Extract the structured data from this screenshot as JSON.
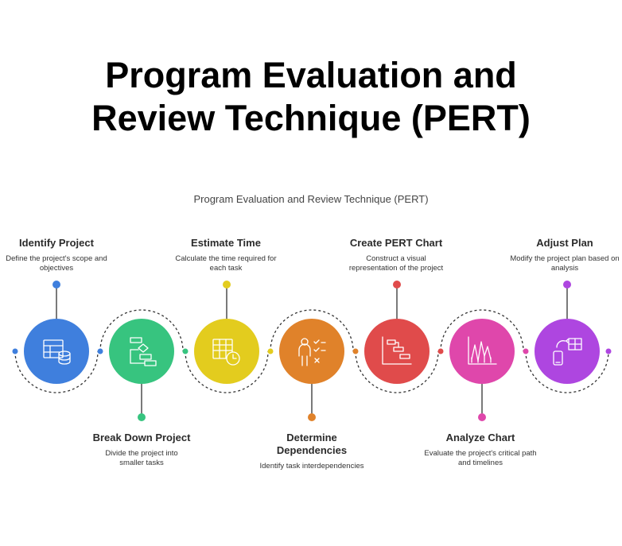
{
  "title": {
    "line1": "Program Evaluation and",
    "line2": "Review Technique (PERT)"
  },
  "subtitle": "Program Evaluation and Review Technique (PERT)",
  "steps": [
    {
      "title": "Identify Project",
      "description": "Define the project's scope and objectives",
      "color": "#3f7fdd",
      "icon": "database-table-icon",
      "position": "top"
    },
    {
      "title": "Break Down Project",
      "description": "Divide the project into smaller tasks",
      "color": "#37c47f",
      "icon": "flowchart-breakdown-icon",
      "position": "bottom"
    },
    {
      "title": "Estimate Time",
      "description": "Calculate the time required for each task",
      "color": "#e3cc1e",
      "icon": "calendar-clock-icon",
      "position": "top"
    },
    {
      "title": "Determine Dependencies",
      "description": "Identify task interdependencies",
      "color": "#e0822a",
      "icon": "person-checklist-icon",
      "position": "bottom"
    },
    {
      "title": "Create PERT Chart",
      "description": "Construct a visual representation of the project",
      "color": "#e04b4b",
      "icon": "gantt-chart-icon",
      "position": "top"
    },
    {
      "title": "Analyze Chart",
      "description": "Evaluate the project's critical path and timelines",
      "color": "#df47ab",
      "icon": "line-graph-icon",
      "position": "bottom"
    },
    {
      "title": "Adjust Plan",
      "description": "Modify the project plan based on analysis",
      "color": "#ae46e0",
      "icon": "device-table-sync-icon",
      "position": "top"
    }
  ]
}
